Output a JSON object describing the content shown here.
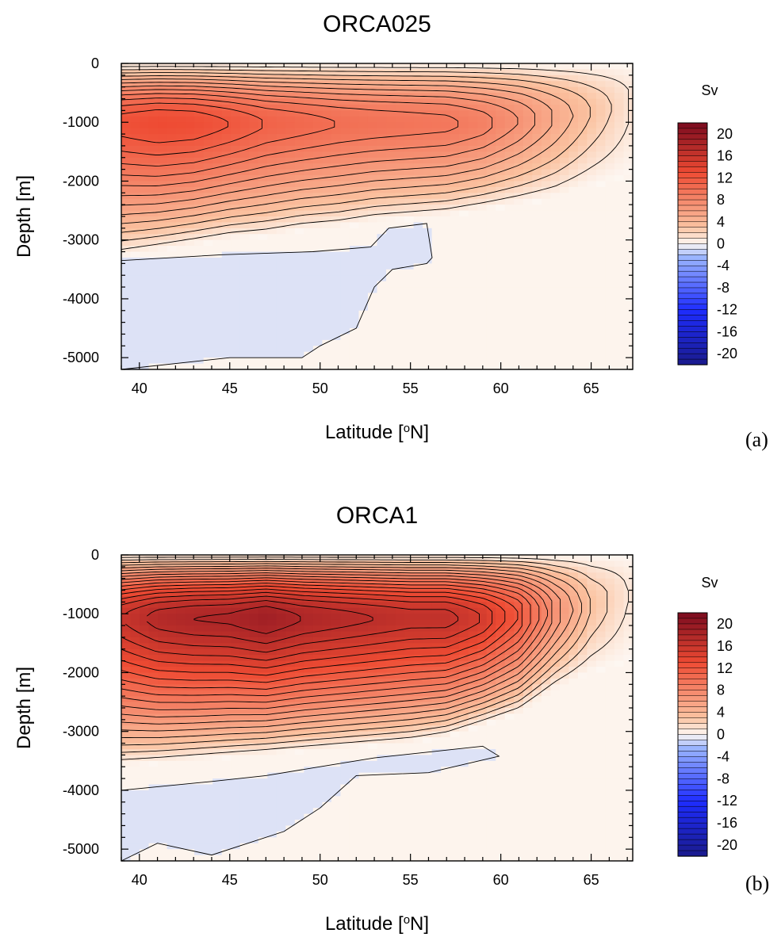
{
  "chart_data": [
    {
      "type": "heatmap",
      "title": "ORCA025",
      "panel_label": "(a)",
      "xlabel": "Latitude [",
      "xlabel_sup": "o",
      "xlabel_tail": "N]",
      "ylabel": "Depth [m]",
      "xlim": [
        39,
        67.3
      ],
      "ylim": [
        -5200,
        0
      ],
      "x_ticks": [
        40,
        45,
        50,
        55,
        60,
        65
      ],
      "y_ticks": [
        0,
        -1000,
        -2000,
        -3000,
        -4000,
        -5000
      ],
      "colorbar": {
        "unit": "Sv",
        "levels": [
          20,
          16,
          12,
          8,
          4,
          0,
          -4,
          -8,
          -12,
          -16,
          -20
        ],
        "range": [
          -22,
          22
        ],
        "colors": {
          "neg_strong": "#1a1a8c",
          "neg_mid": "#1e2dff",
          "neg_light": "#9ab4ff",
          "zero": "#fdf7f2",
          "pos_light": "#fbc3a1",
          "pos_mid": "#ee4b33",
          "pos_strong": "#7a0a1e"
        }
      },
      "profile": {
        "x": [
          39,
          41,
          43,
          45,
          47,
          49,
          51,
          53,
          55,
          57,
          59,
          61,
          63,
          65,
          67.3
        ],
        "max_sv": [
          12.5,
          13,
          12.8,
          12,
          11,
          10.5,
          10,
          9.7,
          9.5,
          9.3,
          8.5,
          7,
          5,
          3,
          1
        ],
        "core_depth": [
          -1050,
          -1050,
          -1050,
          -1050,
          -1050,
          -1050,
          -1050,
          -1050,
          -1050,
          -1050,
          -1050,
          -1000,
          -950,
          -850,
          -700
        ],
        "bottom_depth": [
          -3300,
          -3200,
          -3100,
          -3000,
          -2950,
          -2850,
          -2800,
          -2700,
          -2650,
          -2600,
          -2500,
          -2400,
          -2300,
          -2100,
          -1900
        ]
      },
      "negative_cell": {
        "x": [
          39,
          44.6,
          49.6,
          52.8,
          53.8,
          55.9,
          56.2,
          55.9,
          54,
          53,
          52,
          50,
          49,
          45,
          39
        ],
        "depth": [
          -3350,
          -3250,
          -3200,
          -3120,
          -2800,
          -2720,
          -3300,
          -3400,
          -3500,
          -3800,
          -4500,
          -4800,
          -5000,
          -5000,
          -5200
        ]
      }
    },
    {
      "type": "heatmap",
      "title": "ORCA1",
      "panel_label": "(b)",
      "xlabel": "Latitude [",
      "xlabel_sup": "o",
      "xlabel_tail": "N]",
      "ylabel": "Depth [m]",
      "xlim": [
        39,
        67.3
      ],
      "ylim": [
        -5200,
        0
      ],
      "x_ticks": [
        40,
        45,
        50,
        55,
        60,
        65
      ],
      "y_ticks": [
        0,
        -1000,
        -2000,
        -3000,
        -4000,
        -5000
      ],
      "colorbar": {
        "unit": "Sv",
        "levels": [
          20,
          16,
          12,
          8,
          4,
          0,
          -4,
          -8,
          -12,
          -16,
          -20
        ],
        "range": [
          -22,
          22
        ],
        "colors": {
          "neg_strong": "#1a1a8c",
          "neg_mid": "#1e2dff",
          "neg_light": "#9ab4ff",
          "zero": "#fdf7f2",
          "pos_light": "#fbc3a1",
          "pos_mid": "#ee4b33",
          "pos_strong": "#7a0a1e"
        }
      },
      "profile": {
        "x": [
          39,
          41,
          43,
          45,
          47,
          49,
          51,
          53,
          55,
          57,
          59,
          61,
          63,
          65,
          67.3
        ],
        "max_sv": [
          16,
          17.5,
          18,
          18.2,
          19,
          18,
          17.5,
          17,
          16.5,
          16.5,
          15,
          12,
          7,
          3,
          0.8
        ],
        "core_depth": [
          -1100,
          -1100,
          -1100,
          -1100,
          -1100,
          -1100,
          -1100,
          -1100,
          -1100,
          -1100,
          -1100,
          -1050,
          -1000,
          -900,
          -700
        ],
        "bottom_depth": [
          -3600,
          -3550,
          -3500,
          -3450,
          -3400,
          -3350,
          -3300,
          -3250,
          -3200,
          -3100,
          -2900,
          -2700,
          -2300,
          -2000,
          -1800
        ]
      },
      "negative_cell": {
        "x": [
          39,
          44,
          47,
          50,
          53,
          56,
          59,
          59.9,
          56,
          52,
          50,
          48,
          44,
          41,
          39
        ],
        "depth": [
          -4000,
          -3850,
          -3750,
          -3600,
          -3450,
          -3350,
          -3250,
          -3420,
          -3700,
          -3750,
          -4300,
          -4700,
          -5100,
          -4900,
          -5200
        ]
      }
    }
  ]
}
